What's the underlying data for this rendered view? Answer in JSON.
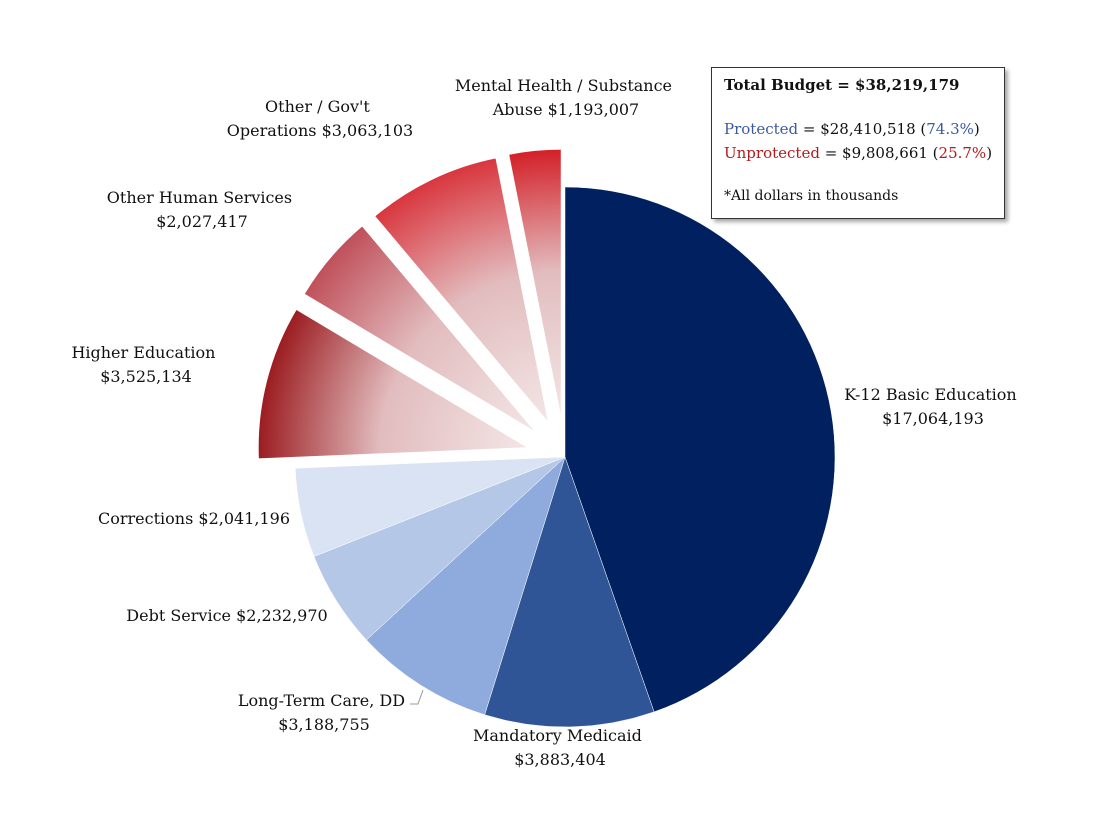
{
  "chart_data": {
    "type": "pie",
    "slices": [
      {
        "label": "K-12 Basic Education",
        "value_text": "$17,064,193",
        "value": 17064193,
        "group": "protected",
        "color": "#002060"
      },
      {
        "label": "Mandatory Medicaid",
        "value_text": "$3,883,404",
        "value": 3883404,
        "group": "protected",
        "color": "#2f5597"
      },
      {
        "label": "Long-Term Care, DD",
        "value_text": "$3,188,755",
        "value": 3188755,
        "group": "protected",
        "color": "#8faadc"
      },
      {
        "label": "Debt Service",
        "value_text": "$2,232,970",
        "value": 2232970,
        "group": "protected",
        "color": "#b4c7e7"
      },
      {
        "label": "Corrections",
        "value_text": "$2,041,196",
        "value": 2041196,
        "group": "protected",
        "color": "#dae3f3"
      },
      {
        "label": "Higher Education",
        "value_text": "$3,525,134",
        "value": 3525134,
        "group": "unprotected",
        "color": "#9b1c20"
      },
      {
        "label": "Other Human Services",
        "value_text": "$2,027,417",
        "value": 2027417,
        "group": "unprotected",
        "color": "#c0505a"
      },
      {
        "label": "Other / Gov't Operations",
        "value_text": "$3,063,103",
        "value": 3063103,
        "group": "unprotected",
        "color": "#d9363e"
      },
      {
        "label": "Mental Health / Substance Abuse",
        "value_text": "$1,193,007",
        "value": 1193007,
        "group": "unprotected",
        "color": "#d32028"
      }
    ],
    "exploded_group": "unprotected"
  },
  "labels": {
    "k12": {
      "line1": "K-12 Basic Education",
      "line2": "$17,064,193"
    },
    "medicaid": {
      "line1": "Mandatory Medicaid",
      "line2": "$3,883,404"
    },
    "ltc": {
      "line1": "Long-Term Care, DD",
      "line2": "$3,188,755"
    },
    "debt": {
      "line1": "Debt Service  $2,232,970"
    },
    "corrections": {
      "line1": "Corrections  $2,041,196"
    },
    "higher_ed": {
      "line1": "Higher Education",
      "line2": "$3,525,134"
    },
    "other_human": {
      "line1": "Other Human Services",
      "line2": "$2,027,417"
    },
    "other_gov": {
      "line1": "Other / Gov't",
      "line2": "Operations  $3,063,103"
    },
    "mental": {
      "line1": "Mental Health / Substance",
      "line2": "Abuse  $1,193,007"
    }
  },
  "legend": {
    "total_label": "Total Budget",
    "total_rest": " = $38,219,179",
    "protected_label": "Protected",
    "protected_eq": " = $28,410,518 (",
    "protected_pct": "74.3%",
    "unprotected_label": "Unprotected",
    "unprotected_eq": " = $9,808,661 (",
    "unprotected_pct": "25.7%",
    "close_paren": ")",
    "note": "*All dollars in thousands"
  }
}
